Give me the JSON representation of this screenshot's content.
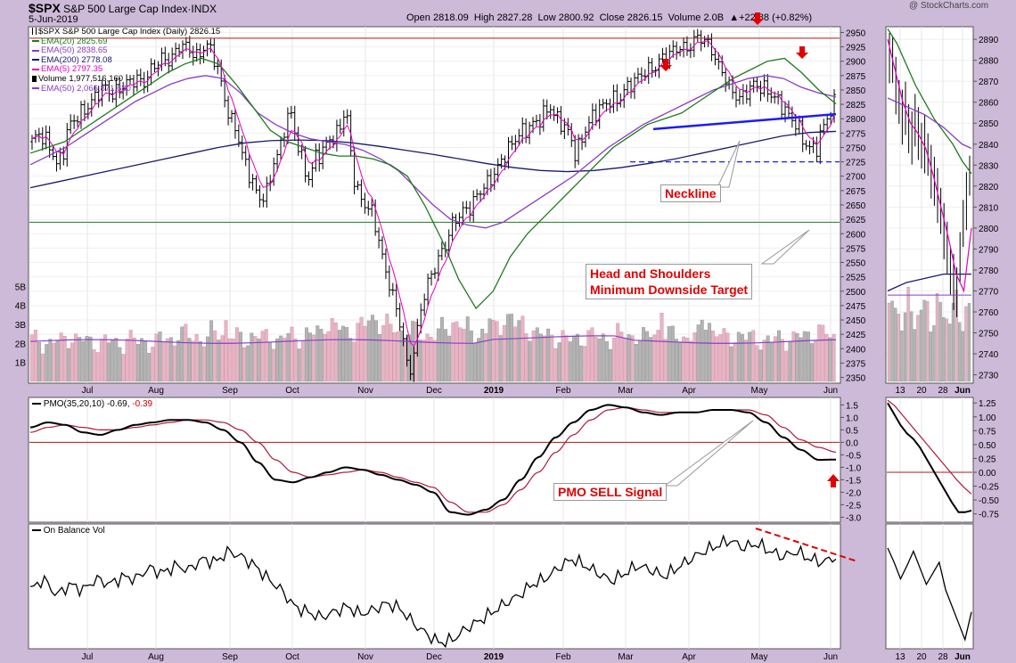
{
  "header": {
    "symbol": "$SPX",
    "name": "S&P 500 Large Cap Index",
    "exchange": "INDX",
    "date": "5-Jun-2019",
    "open_label": "Open",
    "open": "2818.09",
    "high_label": "High",
    "high": "2827.28",
    "low_label": "Low",
    "low": "2800.92",
    "close_label": "Close",
    "close": "2826.15",
    "volume_label": "Volume",
    "volume": "2.0B",
    "change": "▲+22.88 (+0.82%)",
    "credit": "@ StockCharts.com"
  },
  "legend": [
    {
      "text": "$SPX S&P 500 Large Cap Index (Daily) 2826.15",
      "color": "#000000",
      "swatch": "bar"
    },
    {
      "text": "EMA(20) 2825.69",
      "color": "#1e7a1e",
      "swatch": "line"
    },
    {
      "text": "EMA(50) 2838.65",
      "color": "#8c3cc8",
      "swatch": "line"
    },
    {
      "text": "EMA(200) 2778.08",
      "color": "#1a1a6e",
      "swatch": "line"
    },
    {
      "text": "EMA(5) 2797.35",
      "color": "#e000c0",
      "swatch": "line"
    },
    {
      "text": "Volume 1,977,516,160",
      "color": "#000000",
      "swatch": "vol"
    },
    {
      "text": "EMA(50) 2,066,871,680",
      "color": "#8c3cc8",
      "swatch": "line"
    }
  ],
  "pmo_label": {
    "text": "PMO(35,20,10)",
    "value1": "-0.69",
    "value2": "-0.39"
  },
  "obv_label": "On Balance Vol",
  "annotations": {
    "neckline": "Neckline",
    "target_line1": "Head and Shoulders",
    "target_line2": "Minimum Downside Target",
    "pmo_sell": "PMO SELL Signal"
  },
  "colors": {
    "price": "#000000",
    "ema20": "#1e7a1e",
    "ema50": "#8c3cc8",
    "ema200": "#1a1a6e",
    "ema5": "#e000c0",
    "neckline": "#1a1aff",
    "annotation": "#e00000",
    "volume_up": "#e8b4c4",
    "volume_down": "#b4b4b4",
    "pmo": "#000000",
    "pmo_signal": "#aa1a3a",
    "horizontal": "#aa1a1a",
    "green_line": "#1e7a1e"
  },
  "chart_data": [
    {
      "type": "candlestick",
      "title": "$SPX S&P 500 Large Cap Index (Daily) 2826.15",
      "x_ticks": [
        "Jul",
        "Aug",
        "Sep",
        "Oct",
        "Nov",
        "Dec",
        "2019",
        "Feb",
        "Mar",
        "Apr",
        "May",
        "Jun"
      ],
      "y_ticks": [
        "2950",
        "2925",
        "2900",
        "2875",
        "2850",
        "2825",
        "2800",
        "2775",
        "2750",
        "2725",
        "2700",
        "2675",
        "2650",
        "2625",
        "2600",
        "2575",
        "2550",
        "2525",
        "2500",
        "2475",
        "2450",
        "2425",
        "2400",
        "2375",
        "2350"
      ],
      "ylim": [
        2340,
        2960
      ],
      "close_approx": [
        2760,
        2775,
        2765,
        2750,
        2720,
        2740,
        2790,
        2800,
        2810,
        2820,
        2835,
        2850,
        2855,
        2840,
        2850,
        2860,
        2865,
        2870,
        2860,
        2880,
        2895,
        2905,
        2900,
        2910,
        2930,
        2925,
        2915,
        2905,
        2930,
        2920,
        2890,
        2845,
        2800,
        2785,
        2740,
        2710,
        2680,
        2660,
        2670,
        2720,
        2740,
        2790,
        2810,
        2755,
        2720,
        2690,
        2740,
        2735,
        2770,
        2760,
        2795,
        2810,
        2705,
        2665,
        2650,
        2640,
        2600,
        2545,
        2510,
        2470,
        2430,
        2350,
        2400,
        2470,
        2510,
        2535,
        2560,
        2580,
        2615,
        2630,
        2640,
        2645,
        2665,
        2680,
        2690,
        2705,
        2725,
        2745,
        2760,
        2775,
        2780,
        2790,
        2795,
        2810,
        2820,
        2800,
        2790,
        2775,
        2740,
        2760,
        2790,
        2805,
        2820,
        2825,
        2835,
        2830,
        2850,
        2860,
        2870,
        2880,
        2885,
        2890,
        2905,
        2910,
        2920,
        2925,
        2920,
        2930,
        2945,
        2935,
        2925,
        2895,
        2880,
        2855,
        2840,
        2835,
        2850,
        2860,
        2855,
        2850,
        2840,
        2830,
        2815,
        2800,
        2790,
        2760,
        2750,
        2745,
        2780,
        2805,
        2826
      ],
      "ema20_approx": [
        2740,
        2750,
        2760,
        2780,
        2800,
        2820,
        2840,
        2860,
        2880,
        2895,
        2905,
        2895,
        2860,
        2820,
        2780,
        2760,
        2750,
        2740,
        2735,
        2735,
        2730,
        2720,
        2700,
        2650,
        2590,
        2520,
        2470,
        2500,
        2560,
        2600,
        2630,
        2660,
        2690,
        2720,
        2750,
        2770,
        2790,
        2800,
        2810,
        2830,
        2850,
        2870,
        2885,
        2900,
        2905,
        2880,
        2850,
        2826
      ],
      "ema50_approx": [
        2720,
        2735,
        2750,
        2770,
        2790,
        2810,
        2830,
        2845,
        2860,
        2870,
        2875,
        2870,
        2845,
        2810,
        2790,
        2775,
        2765,
        2760,
        2755,
        2745,
        2730,
        2710,
        2680,
        2650,
        2625,
        2615,
        2610,
        2620,
        2640,
        2660,
        2680,
        2700,
        2725,
        2750,
        2770,
        2790,
        2805,
        2820,
        2835,
        2850,
        2860,
        2870,
        2875,
        2870,
        2855,
        2845,
        2838
      ],
      "ema200_approx": [
        2680,
        2690,
        2700,
        2710,
        2720,
        2730,
        2740,
        2750,
        2758,
        2762,
        2763,
        2762,
        2758,
        2752,
        2745,
        2738,
        2730,
        2722,
        2715,
        2710,
        2708,
        2710,
        2715,
        2722,
        2730,
        2740,
        2750,
        2760,
        2770,
        2776,
        2778
      ],
      "neckline": {
        "from": [
          2782,
          "Mar"
        ],
        "to": [
          2810,
          "Jun"
        ]
      },
      "target_level": 2725,
      "resistance_level": 2940,
      "support_level": 2620
    },
    {
      "type": "bar",
      "title": "Volume",
      "y_ticks": [
        "5B",
        "4B",
        "3B",
        "2B",
        "1B"
      ],
      "ylim": [
        0,
        6
      ],
      "values_approx_B": [
        2.2,
        2.0,
        2.1,
        2.3,
        2.2,
        2.1,
        2.0,
        2.1,
        2.0,
        2.2,
        2.1,
        2.0,
        2.3,
        2.2,
        2.5,
        2.4,
        2.2,
        2.6,
        2.5,
        2.3,
        2.2,
        2.4,
        2.3,
        2.2,
        2.4,
        2.3,
        2.5,
        2.6,
        3.0,
        2.8,
        2.6,
        2.9,
        3.3,
        3.0,
        2.8,
        2.6,
        2.7,
        2.4,
        2.5,
        2.8,
        3.1,
        2.7,
        2.5,
        2.6,
        2.8,
        3.4,
        3.0,
        2.7,
        2.5,
        2.4,
        2.3,
        2.2,
        2.3,
        2.4,
        2.3,
        2.2,
        2.5,
        2.4,
        2.3,
        2.6,
        2.5,
        2.4,
        2.3,
        2.4,
        3.2,
        2.5,
        2.3,
        2.4,
        2.3,
        2.2,
        2.1,
        2.3,
        2.2,
        2.4,
        2.5,
        2.6,
        2.3
      ]
    },
    {
      "type": "line",
      "title": "PMO(35,20,10)",
      "y_ticks": [
        "1.5",
        "1.0",
        "0.5",
        "0.0",
        "-0.5",
        "-1.0",
        "-1.5",
        "-2.0",
        "-2.5",
        "-3.0"
      ],
      "ylim": [
        -3.2,
        1.8
      ],
      "series": [
        {
          "name": "PMO",
          "values_approx": [
            0.6,
            0.8,
            0.7,
            0.4,
            0.3,
            0.5,
            0.7,
            0.8,
            0.9,
            0.9,
            0.8,
            0.5,
            0.0,
            -0.8,
            -1.5,
            -1.6,
            -1.4,
            -1.2,
            -1.0,
            -1.1,
            -1.3,
            -1.5,
            -1.7,
            -2.0,
            -2.8,
            -2.9,
            -2.7,
            -2.3,
            -1.5,
            -0.6,
            0.2,
            0.8,
            1.3,
            1.5,
            1.4,
            1.2,
            1.1,
            1.2,
            1.2,
            1.3,
            1.3,
            1.2,
            0.8,
            0.2,
            -0.3,
            -0.7,
            -0.69
          ]
        },
        {
          "name": "Signal",
          "values_approx": [
            0.4,
            0.6,
            0.7,
            0.6,
            0.5,
            0.5,
            0.6,
            0.7,
            0.8,
            0.9,
            0.9,
            0.8,
            0.5,
            0.0,
            -0.7,
            -1.2,
            -1.4,
            -1.3,
            -1.2,
            -1.1,
            -1.2,
            -1.4,
            -1.6,
            -1.8,
            -2.4,
            -2.8,
            -2.8,
            -2.5,
            -1.9,
            -1.2,
            -0.4,
            0.3,
            0.9,
            1.3,
            1.4,
            1.3,
            1.2,
            1.2,
            1.2,
            1.3,
            1.3,
            1.3,
            1.1,
            0.6,
            0.1,
            -0.2,
            -0.39
          ]
        }
      ]
    },
    {
      "type": "line",
      "title": "On Balance Vol",
      "series": [
        {
          "name": "On Balance Vol",
          "values_approx": [
            0.5,
            0.6,
            0.45,
            0.55,
            0.5,
            0.6,
            0.55,
            0.62,
            0.6,
            0.7,
            0.65,
            0.72,
            0.68,
            0.78,
            0.75,
            0.85,
            0.8,
            0.72,
            0.6,
            0.5,
            0.35,
            0.3,
            0.25,
            0.3,
            0.35,
            0.28,
            0.32,
            0.38,
            0.33,
            0.2,
            0.1,
            0.02,
            0.05,
            0.15,
            0.22,
            0.3,
            0.38,
            0.45,
            0.55,
            0.6,
            0.7,
            0.78,
            0.72,
            0.65,
            0.58,
            0.65,
            0.72,
            0.68,
            0.62,
            0.7,
            0.78,
            0.85,
            0.9,
            0.95,
            0.88,
            0.92,
            0.85,
            0.8,
            0.85,
            0.78,
            0.75,
            0.8
          ]
        }
      ]
    },
    {
      "type": "candlestick",
      "title": "Zoom panel",
      "x_ticks": [
        "13",
        "20",
        "28",
        "Jun"
      ],
      "y_ticks": [
        "2890",
        "2880",
        "2870",
        "2860",
        "2850",
        "2840",
        "2830",
        "2820",
        "2810",
        "2800",
        "2790",
        "2780",
        "2770",
        "2760",
        "2750",
        "2740",
        "2730"
      ],
      "ylim": [
        2726,
        2896
      ]
    },
    {
      "type": "line",
      "title": "Zoom PMO",
      "y_ticks": [
        "1.25",
        "1.00",
        "0.75",
        "0.50",
        "0.25",
        "0.00",
        "-0.25",
        "-0.50",
        "-0.75"
      ],
      "ylim": [
        -0.9,
        1.35
      ]
    }
  ]
}
